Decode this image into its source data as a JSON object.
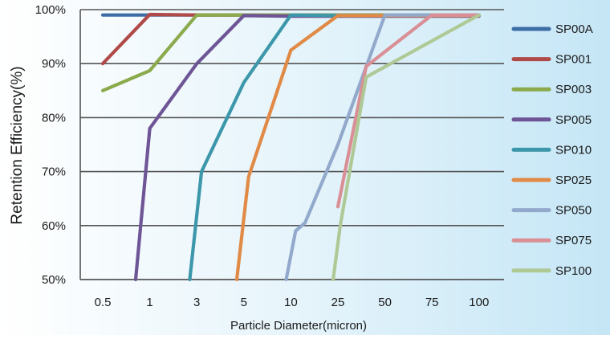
{
  "chart_data": {
    "type": "line",
    "title": "",
    "xlabel": "Particle Diameter(micron)",
    "ylabel": "Retention Efficiency(%)",
    "categories": [
      "0.5",
      "1",
      "3",
      "5",
      "10",
      "25",
      "50",
      "75",
      "100"
    ],
    "y_ticks": [
      "50%",
      "60%",
      "70%",
      "80%",
      "90%",
      "100%"
    ],
    "ylim": [
      50,
      100
    ],
    "grid": "horizontal",
    "legend_position": "right",
    "series": [
      {
        "name": "SP00A",
        "color": "#3d6da6",
        "points": [
          [
            0,
            99
          ],
          [
            1,
            99
          ],
          [
            2,
            99
          ],
          [
            3,
            99
          ],
          [
            4,
            99
          ],
          [
            5,
            99
          ],
          [
            6,
            99
          ],
          [
            7,
            99
          ],
          [
            8,
            99
          ]
        ]
      },
      {
        "name": "SP001",
        "color": "#b04a48",
        "points": [
          [
            0,
            90
          ],
          [
            1,
            99.1
          ],
          [
            2,
            99
          ],
          [
            3,
            99
          ],
          [
            4,
            99
          ],
          [
            5,
            99
          ],
          [
            6,
            99
          ],
          [
            7,
            99
          ],
          [
            8,
            99
          ]
        ]
      },
      {
        "name": "SP003",
        "color": "#8aaa4c",
        "points": [
          [
            0,
            85
          ],
          [
            1,
            88.7
          ],
          [
            2,
            99
          ],
          [
            3,
            99
          ],
          [
            4,
            99
          ],
          [
            5,
            99
          ],
          [
            6,
            99
          ],
          [
            7,
            99
          ],
          [
            8,
            99
          ]
        ]
      },
      {
        "name": "SP005",
        "color": "#6e5596",
        "points": [
          [
            0.7,
            50
          ],
          [
            1,
            78
          ],
          [
            2,
            90
          ],
          [
            3,
            98.9
          ],
          [
            4,
            98.8
          ],
          [
            5,
            98.8
          ],
          [
            6,
            98.8
          ],
          [
            7,
            98.8
          ],
          [
            8,
            98.8
          ]
        ]
      },
      {
        "name": "SP010",
        "color": "#3c97aa",
        "points": [
          [
            1.85,
            50
          ],
          [
            2.1,
            70
          ],
          [
            3,
            86.5
          ],
          [
            4,
            99
          ],
          [
            5,
            98.9
          ],
          [
            6,
            98.9
          ],
          [
            7,
            98.9
          ],
          [
            8,
            98.9
          ]
        ]
      },
      {
        "name": "SP025",
        "color": "#e08a46",
        "points": [
          [
            2.85,
            50
          ],
          [
            3.1,
            69
          ],
          [
            4,
            92.5
          ],
          [
            5,
            98.9
          ],
          [
            6,
            98.9
          ],
          [
            7,
            98.9
          ],
          [
            8,
            98.9
          ]
        ]
      },
      {
        "name": "SP050",
        "color": "#92a9cc",
        "points": [
          [
            3.9,
            50
          ],
          [
            4.1,
            59
          ],
          [
            4.3,
            60.5
          ],
          [
            5,
            75
          ],
          [
            6,
            99
          ],
          [
            7,
            99
          ],
          [
            8,
            99
          ]
        ]
      },
      {
        "name": "SP075",
        "color": "#d98f95",
        "points": [
          [
            5,
            63.5
          ],
          [
            5.6,
            89.5
          ],
          [
            7,
            99
          ],
          [
            8,
            99
          ]
        ]
      },
      {
        "name": "SP100",
        "color": "#aec995",
        "points": [
          [
            4.9,
            50
          ],
          [
            5.05,
            60
          ],
          [
            5.6,
            87.5
          ],
          [
            8,
            99
          ]
        ]
      }
    ]
  }
}
